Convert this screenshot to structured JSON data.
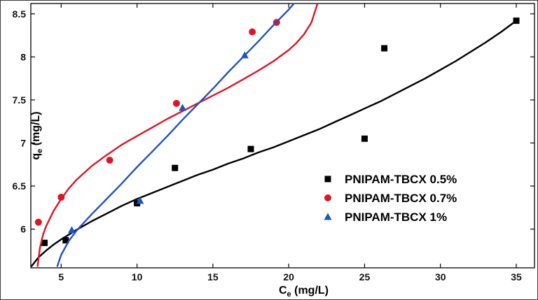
{
  "figure": {
    "background": "#ffffff",
    "border_color": "#3a3a3a"
  },
  "chart_data": {
    "type": "scatter",
    "title": "",
    "xlabel": {
      "base": "C",
      "sub": "e",
      "rest": " (mg/L)"
    },
    "ylabel": {
      "base": "q",
      "sub": "e",
      "rest": " (mg/L)"
    },
    "xlim": [
      3,
      36.2
    ],
    "ylim": [
      5.55,
      8.62
    ],
    "xticks": [
      5,
      10,
      15,
      20,
      25,
      30,
      35
    ],
    "yticks": [
      6,
      6.5,
      7,
      7.5,
      8,
      8.5
    ],
    "grid": false,
    "legend_position": "lower-right",
    "series": [
      {
        "name": "PNIPAM-TBCX 0.5%",
        "color": "#000000",
        "marker": "square",
        "points": [
          [
            3.9,
            5.84
          ],
          [
            5.3,
            5.87
          ],
          [
            10,
            6.3
          ],
          [
            12.5,
            6.71
          ],
          [
            17.5,
            6.93
          ],
          [
            25,
            7.05
          ],
          [
            26.3,
            8.1
          ],
          [
            35,
            8.42
          ]
        ],
        "curve": [
          [
            3.05,
            5.57
          ],
          [
            3.5,
            5.67
          ],
          [
            4,
            5.75
          ],
          [
            4.5,
            5.82
          ],
          [
            5,
            5.88
          ],
          [
            6,
            5.99
          ],
          [
            7,
            6.09
          ],
          [
            8,
            6.18
          ],
          [
            9,
            6.27
          ],
          [
            10,
            6.35
          ],
          [
            11,
            6.42
          ],
          [
            12,
            6.49
          ],
          [
            13,
            6.56
          ],
          [
            14,
            6.63
          ],
          [
            15,
            6.69
          ],
          [
            16,
            6.76
          ],
          [
            17,
            6.82
          ],
          [
            18,
            6.89
          ],
          [
            19,
            6.95
          ],
          [
            20,
            7.02
          ],
          [
            21,
            7.09
          ],
          [
            22,
            7.16
          ],
          [
            23,
            7.24
          ],
          [
            24,
            7.32
          ],
          [
            25,
            7.4
          ],
          [
            26,
            7.48
          ],
          [
            27,
            7.57
          ],
          [
            28,
            7.66
          ],
          [
            29,
            7.75
          ],
          [
            30,
            7.85
          ],
          [
            31,
            7.95
          ],
          [
            32,
            8.06
          ],
          [
            33,
            8.17
          ],
          [
            34,
            8.29
          ],
          [
            35,
            8.42
          ]
        ]
      },
      {
        "name": "PNIPAM-TBCX 0.7%",
        "color": "#e01425",
        "marker": "circle",
        "points": [
          [
            3.5,
            6.08
          ],
          [
            5,
            6.37
          ],
          [
            8.2,
            6.8
          ],
          [
            12.6,
            7.46
          ],
          [
            17.6,
            8.29
          ],
          [
            19.2,
            8.4
          ]
        ],
        "curve": [
          [
            3.45,
            5.57
          ],
          [
            3.6,
            5.78
          ],
          [
            3.8,
            5.93
          ],
          [
            4,
            6.03
          ],
          [
            4.5,
            6.21
          ],
          [
            5,
            6.35
          ],
          [
            5.5,
            6.47
          ],
          [
            6,
            6.57
          ],
          [
            7,
            6.73
          ],
          [
            8,
            6.86
          ],
          [
            9,
            6.98
          ],
          [
            10,
            7.08
          ],
          [
            11,
            7.18
          ],
          [
            12,
            7.28
          ],
          [
            13,
            7.37
          ],
          [
            14,
            7.46
          ],
          [
            15,
            7.55
          ],
          [
            16,
            7.64
          ],
          [
            17,
            7.74
          ],
          [
            18,
            7.84
          ],
          [
            19,
            7.95
          ],
          [
            20,
            8.08
          ],
          [
            20.5,
            8.16
          ],
          [
            21,
            8.26
          ],
          [
            21.5,
            8.4
          ],
          [
            21.9,
            8.62
          ]
        ]
      },
      {
        "name": "PNIPAM-TBCX 1%",
        "color": "#1f52c4",
        "marker": "triangle",
        "points": [
          [
            5.7,
            5.99
          ],
          [
            10.2,
            6.33
          ],
          [
            13,
            7.41
          ],
          [
            17.1,
            8.02
          ]
        ],
        "curve": [
          [
            4.75,
            5.57
          ],
          [
            5,
            5.7
          ],
          [
            5.5,
            5.86
          ],
          [
            6,
            5.98
          ],
          [
            7,
            6.17
          ],
          [
            8,
            6.35
          ],
          [
            9,
            6.53
          ],
          [
            10,
            6.72
          ],
          [
            11,
            6.9
          ],
          [
            12,
            7.08
          ],
          [
            13,
            7.27
          ],
          [
            14,
            7.45
          ],
          [
            15,
            7.63
          ],
          [
            16,
            7.82
          ],
          [
            17,
            8.0
          ],
          [
            18,
            8.18
          ],
          [
            19,
            8.37
          ],
          [
            20,
            8.55
          ],
          [
            20.35,
            8.62
          ]
        ]
      }
    ]
  }
}
